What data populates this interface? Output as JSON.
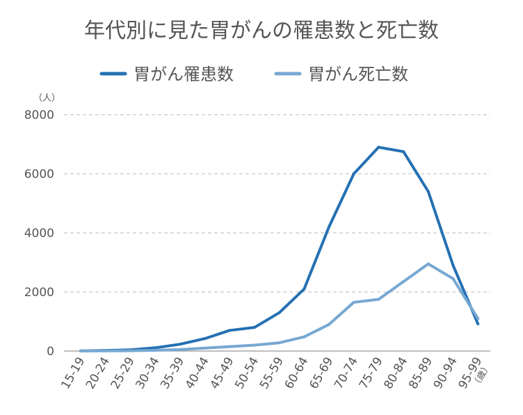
{
  "chart_data": {
    "type": "line",
    "title": "年代別に見た胃がんの罹患数と死亡数",
    "y_unit": "（人）",
    "x_unit": "（歳）",
    "ylim": [
      0,
      8000
    ],
    "yticks": [
      0,
      2000,
      4000,
      6000,
      8000
    ],
    "grid": true,
    "legend_position": "top",
    "categories": [
      "15-19",
      "20-24",
      "25-29",
      "30-34",
      "35-39",
      "40-44",
      "45-49",
      "50-54",
      "55-59",
      "60-64",
      "65-69",
      "70-74",
      "75-79",
      "80-84",
      "85-89",
      "90-94",
      "95-99"
    ],
    "series": [
      {
        "name": "胃がん罹患数",
        "color": "#2470b3",
        "values": [
          5,
          20,
          40,
          110,
          230,
          420,
          700,
          800,
          1300,
          2100,
          4200,
          6000,
          6900,
          6750,
          5400,
          2900,
          920
        ]
      },
      {
        "name": "胃がん死亡数",
        "color": "#76a8d2",
        "values": [
          2,
          5,
          10,
          25,
          50,
          100,
          150,
          200,
          280,
          480,
          900,
          1650,
          1750,
          2350,
          2950,
          2450,
          1100
        ]
      }
    ]
  }
}
